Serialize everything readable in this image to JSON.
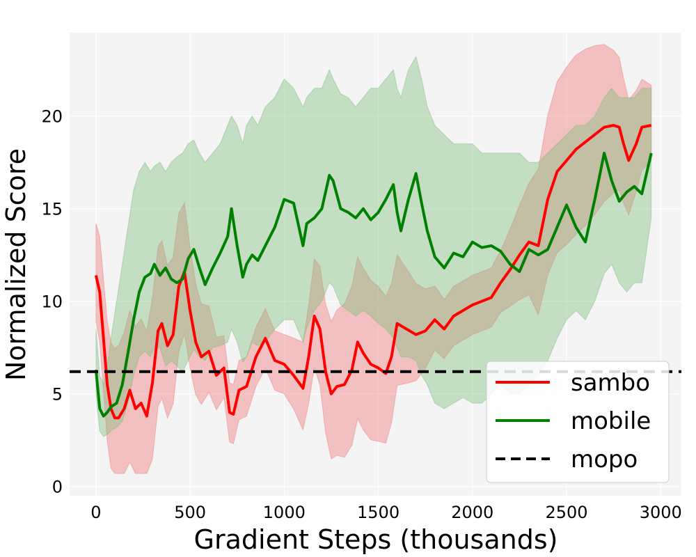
{
  "chart_data": {
    "type": "line",
    "title": "",
    "xlabel": "Gradient Steps (thousands)",
    "ylabel": "Normalized Score",
    "xlim": [
      -140,
      3110
    ],
    "ylim": [
      -0.5,
      24.5
    ],
    "xticks": [
      0,
      500,
      1000,
      1500,
      2000,
      2500,
      3000
    ],
    "yticks": [
      0,
      5,
      10,
      15,
      20
    ],
    "grid": true,
    "legend": "bottom-right",
    "series": [
      {
        "name": "sambo",
        "color": "#ff0000",
        "band_color": "#f08080",
        "x": [
          0,
          20,
          40,
          60,
          80,
          100,
          120,
          150,
          180,
          210,
          240,
          270,
          300,
          330,
          350,
          380,
          410,
          440,
          470,
          500,
          530,
          560,
          600,
          640,
          680,
          710,
          730,
          760,
          800,
          850,
          900,
          950,
          1000,
          1050,
          1100,
          1130,
          1160,
          1190,
          1220,
          1250,
          1280,
          1320,
          1360,
          1390,
          1420,
          1460,
          1500,
          1540,
          1570,
          1600,
          1650,
          1700,
          1750,
          1800,
          1850,
          1900,
          1950,
          2000,
          2050,
          2100,
          2150,
          2200,
          2250,
          2300,
          2350,
          2400,
          2450,
          2500,
          2550,
          2600,
          2650,
          2700,
          2750,
          2780,
          2800,
          2830,
          2870,
          2900,
          2950
        ],
        "y": [
          11.4,
          10.5,
          8.0,
          5.5,
          4.2,
          3.7,
          3.7,
          4.2,
          5.2,
          4.2,
          4.5,
          3.8,
          5.6,
          8.4,
          8.8,
          7.6,
          8.2,
          10.8,
          11.6,
          9.5,
          7.8,
          7.0,
          7.3,
          6.0,
          6.4,
          4.0,
          3.9,
          5.2,
          5.4,
          7.0,
          8.0,
          6.8,
          6.6,
          6.0,
          5.3,
          7.0,
          9.2,
          8.5,
          6.2,
          5.0,
          5.4,
          5.5,
          6.3,
          7.8,
          7.2,
          6.6,
          6.4,
          6.1,
          7.0,
          8.8,
          8.5,
          8.2,
          8.4,
          9.0,
          8.5,
          9.2,
          9.5,
          9.8,
          10.0,
          10.2,
          11.0,
          11.7,
          12.5,
          13.2,
          13.0,
          15.5,
          17.0,
          17.6,
          18.2,
          18.6,
          19.0,
          19.4,
          19.5,
          19.4,
          18.6,
          17.6,
          18.5,
          19.4,
          19.5
        ]
      },
      {
        "name": "mobile",
        "color": "#008000",
        "band_color": "#7cbf7c",
        "x": [
          0,
          20,
          40,
          60,
          80,
          110,
          140,
          170,
          200,
          230,
          260,
          290,
          310,
          340,
          370,
          400,
          430,
          460,
          490,
          520,
          550,
          580,
          620,
          660,
          700,
          720,
          750,
          780,
          800,
          830,
          860,
          900,
          950,
          1000,
          1050,
          1100,
          1120,
          1160,
          1200,
          1240,
          1260,
          1300,
          1340,
          1380,
          1420,
          1460,
          1500,
          1540,
          1580,
          1600,
          1620,
          1660,
          1700,
          1730,
          1760,
          1800,
          1850,
          1900,
          1950,
          2000,
          2050,
          2100,
          2150,
          2200,
          2250,
          2300,
          2350,
          2400,
          2450,
          2500,
          2550,
          2600,
          2650,
          2700,
          2740,
          2780,
          2820,
          2860,
          2900,
          2950
        ],
        "y": [
          6.3,
          4.2,
          3.8,
          4.0,
          4.3,
          4.5,
          5.5,
          7.2,
          9.0,
          10.5,
          11.3,
          11.5,
          12.0,
          11.4,
          11.8,
          11.2,
          11.0,
          11.2,
          12.3,
          12.8,
          11.8,
          10.9,
          11.8,
          12.6,
          13.5,
          15.0,
          13.0,
          11.3,
          12.0,
          12.5,
          12.2,
          13.0,
          14.0,
          15.5,
          15.3,
          13.0,
          14.2,
          14.5,
          15.0,
          16.8,
          16.5,
          15.0,
          14.8,
          14.5,
          15.0,
          14.4,
          14.8,
          15.5,
          16.3,
          14.8,
          13.8,
          15.5,
          16.9,
          15.3,
          13.8,
          12.4,
          11.8,
          12.6,
          12.4,
          13.2,
          12.9,
          13.0,
          12.7,
          12.0,
          11.6,
          12.8,
          12.5,
          12.8,
          14.0,
          15.2,
          14.0,
          13.2,
          15.5,
          18.0,
          16.5,
          15.4,
          15.9,
          16.2,
          15.8,
          18.0
        ],
        "lower": [
          5.0,
          3.0,
          2.7,
          2.8,
          3.0,
          3.2,
          3.5,
          4.5,
          6.0,
          7.0,
          7.3,
          7.0,
          7.5,
          7.5,
          6.5,
          6.8,
          6.5,
          6.2,
          6.8,
          7.4,
          7.0,
          6.8,
          7.5,
          7.6,
          7.8,
          8.5,
          7.8,
          6.7,
          7.0,
          7.8,
          7.6,
          7.8,
          8.5,
          9.0,
          9.0,
          7.8,
          8.6,
          9.5,
          10.0,
          11.0,
          10.8,
          9.8,
          9.5,
          9.2,
          9.5,
          9.2,
          8.8,
          8.5,
          8.0,
          7.5,
          7.0,
          7.0,
          6.8,
          6.0,
          5.5,
          4.5,
          4.2,
          4.5,
          4.8,
          4.5,
          4.5,
          5.0,
          5.5,
          5.0,
          5.0,
          5.5,
          6.0,
          6.8,
          8.0,
          9.0,
          9.5,
          9.0,
          10.0,
          11.5,
          12.0,
          11.0,
          10.5,
          11.0,
          11.0,
          14.5
        ],
        "upper": [
          8.5,
          6.0,
          5.5,
          6.5,
          8.0,
          10.0,
          12.0,
          14.0,
          16.0,
          17.0,
          17.5,
          17.0,
          17.3,
          17.5,
          17.0,
          17.5,
          17.8,
          18.0,
          18.5,
          18.7,
          18.0,
          17.5,
          18.0,
          18.5,
          19.5,
          20.0,
          19.5,
          18.5,
          19.5,
          20.0,
          19.5,
          20.5,
          21.0,
          22.0,
          21.5,
          20.5,
          21.0,
          21.5,
          21.5,
          22.5,
          22.0,
          21.2,
          21.0,
          20.5,
          21.0,
          21.5,
          21.5,
          22.0,
          22.5,
          21.5,
          21.0,
          22.5,
          23.2,
          22.0,
          20.5,
          19.5,
          19.0,
          18.5,
          18.5,
          18.5,
          18.0,
          18.0,
          18.0,
          18.0,
          18.0,
          17.5,
          17.5,
          18.0,
          18.5,
          19.0,
          19.5,
          19.5,
          20.0,
          21.0,
          21.5,
          21.0,
          21.0,
          21.0,
          21.5,
          21.5
        ]
      },
      {
        "name": "mopo",
        "color": "#000000",
        "dashed": true,
        "y": 6.2
      }
    ]
  }
}
